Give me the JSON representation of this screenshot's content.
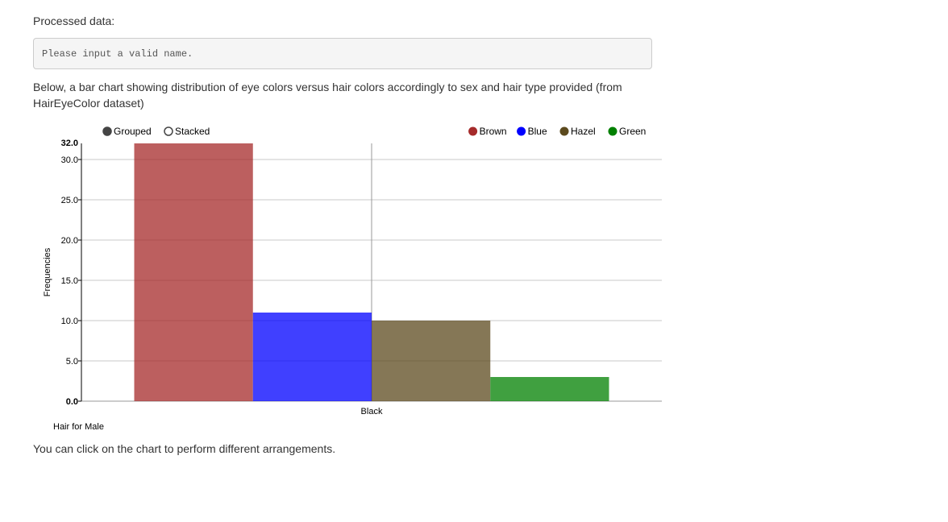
{
  "header": {
    "processed_label": "Processed data:"
  },
  "output": {
    "message": "Please input a valid name."
  },
  "description": "Below, a bar chart showing distribution of eye colors versus hair colors accordingly to sex and hair type provided (from HairEyeColor dataset)",
  "controls": {
    "grouped_label": "Grouped",
    "stacked_label": "Stacked",
    "selected": "Grouped"
  },
  "footer_note": "You can click on the chart to perform different arrangements.",
  "chart_data": {
    "type": "bar",
    "categories": [
      "Black"
    ],
    "series": [
      {
        "name": "Brown",
        "values": [
          32
        ],
        "color": "#a52a2a"
      },
      {
        "name": "Blue",
        "values": [
          11
        ],
        "color": "#0000ff"
      },
      {
        "name": "Hazel",
        "values": [
          10
        ],
        "color": "#5c4a1e"
      },
      {
        "name": "Green",
        "values": [
          3
        ],
        "color": "#008000"
      }
    ],
    "xlabel": "Hair for Male",
    "ylabel": "Frequencies",
    "ylim": [
      0,
      32
    ],
    "yticks": [
      "0.0",
      "5.0",
      "10.0",
      "15.0",
      "20.0",
      "25.0",
      "30.0"
    ],
    "ymax_label": "32.0",
    "grid": true,
    "legend_position": "top-right",
    "bar_opacity": 0.75
  }
}
